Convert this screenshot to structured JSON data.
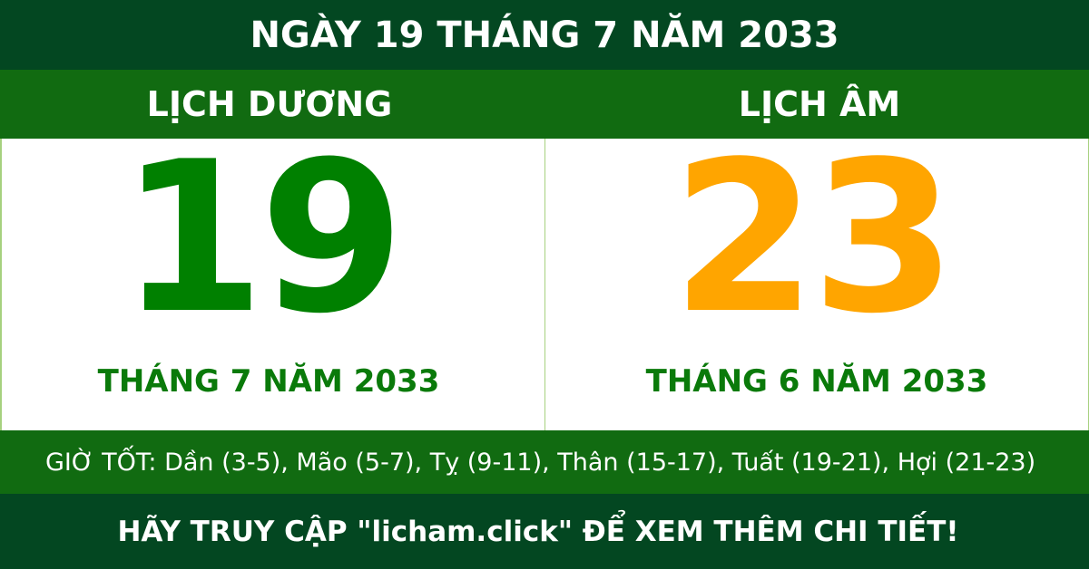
{
  "title": "NGÀY 19 THÁNG 7 NĂM 2033",
  "solar": {
    "heading": "LỊCH DƯƠNG",
    "day": "19",
    "month_year": "THÁNG 7 NĂM 2033"
  },
  "lunar": {
    "heading": "LỊCH ÂM",
    "day": "23",
    "month_year": "THÁNG 6 NĂM 2033"
  },
  "good_hours": "GIỜ TỐT: Dần (3-5), Mão (5-7), Tỵ (9-11), Thân (15-17), Tuất (19-21), Hợi (21-23)",
  "footer": "HÃY TRUY CẬP \"licham.click\" ĐỂ XEM THÊM CHI TIẾT!",
  "colors": {
    "dark_green": "#034721",
    "green": "#116b11",
    "solar_day": "#008000",
    "lunar_day": "#ffa500"
  }
}
